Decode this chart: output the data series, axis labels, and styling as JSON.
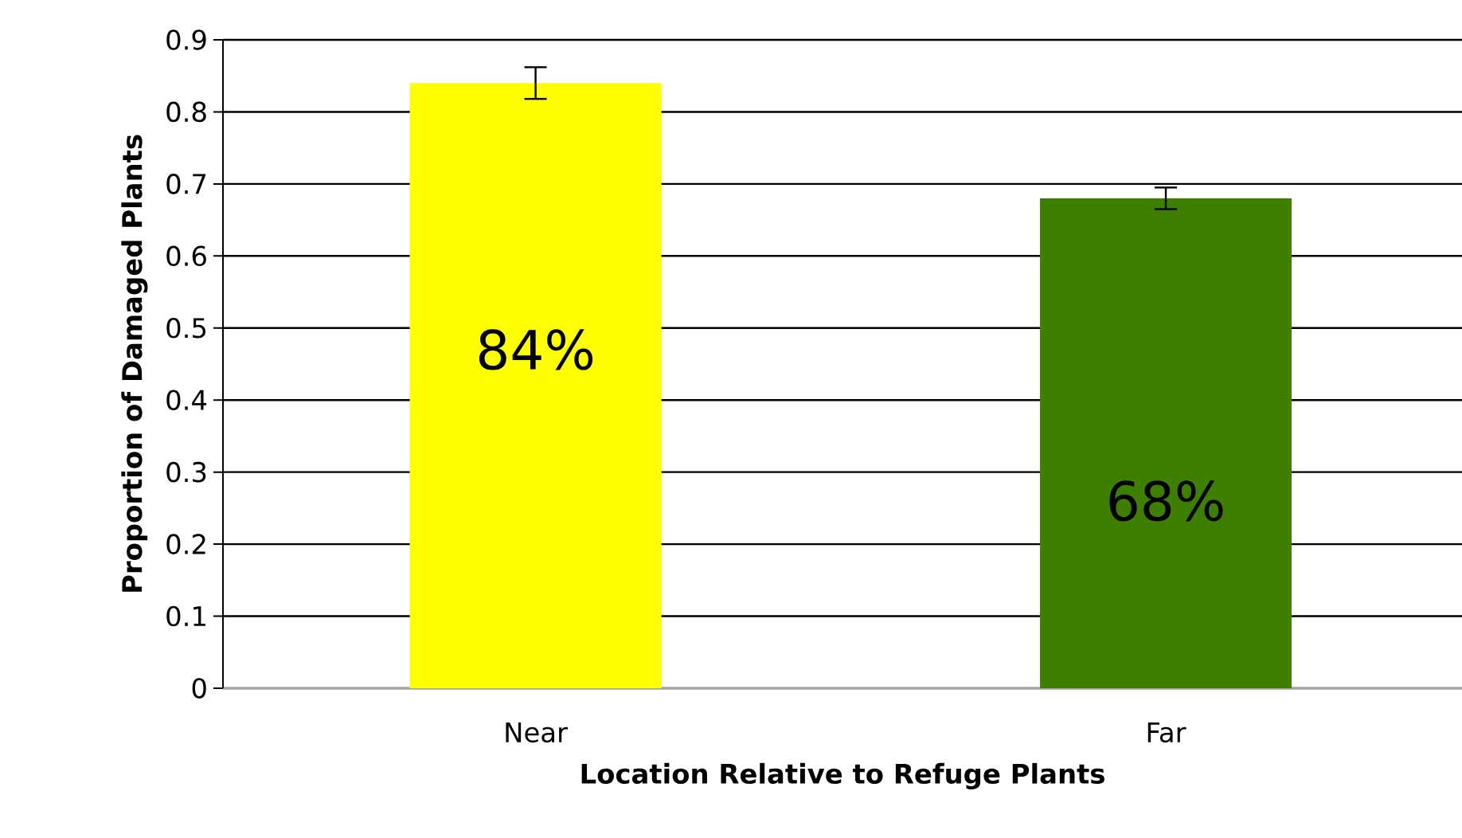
{
  "chart_data": {
    "type": "bar",
    "xlabel": "Location Relative to Refuge Plants",
    "ylabel": "Proportion of Damaged Plants",
    "categories": [
      "Near",
      "Far"
    ],
    "values": [
      0.84,
      0.68
    ],
    "colors": [
      "#ffff00",
      "#3f7f00"
    ],
    "errors": [
      0.022,
      0.015
    ],
    "value_labels": [
      "84%",
      "68%"
    ],
    "ylim": [
      0,
      0.9
    ],
    "yticks": [
      0,
      0.1,
      0.2,
      0.3,
      0.4,
      0.5,
      0.6,
      0.7,
      0.8,
      0.9
    ],
    "grid": "y"
  }
}
